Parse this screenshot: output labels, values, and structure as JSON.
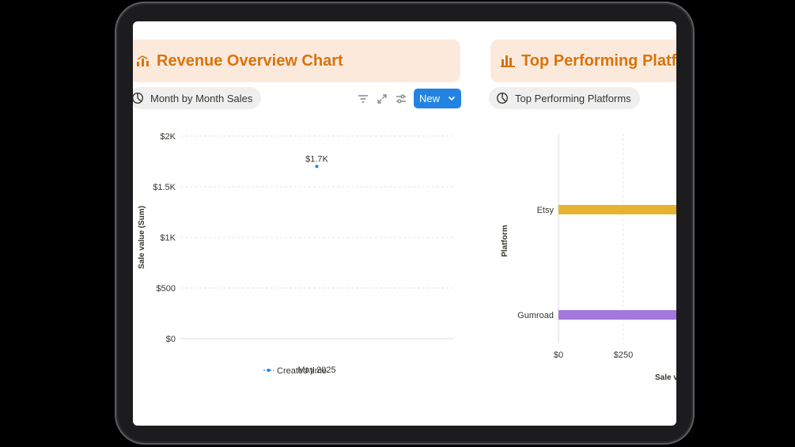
{
  "revenue_panel": {
    "title": "Revenue Overview Chart",
    "view_label": "Month by Month Sales",
    "new_button_label": "New"
  },
  "platforms_panel": {
    "title": "Top Performing Platfo",
    "view_label": "Top Performing Platforms"
  },
  "colors": {
    "accent_orange": "#d9730d",
    "header_bg": "#fbeadc",
    "primary_blue": "#2383e2",
    "etsy_bar": "#e6b330",
    "gumroad_bar": "#a477dc"
  },
  "chart_data": [
    {
      "type": "line",
      "x": [
        "May 2025"
      ],
      "series": [
        {
          "name": "Created time",
          "values": [
            1700
          ]
        }
      ],
      "data_labels": [
        "$1.7K"
      ],
      "ylabel": "Sale value (Sum)",
      "yticks": [
        "$0",
        "$500",
        "$1K",
        "$1.5K",
        "$2K"
      ],
      "ylim": [
        0,
        2000
      ],
      "grid": true,
      "legend": "bottom"
    },
    {
      "type": "bar",
      "orientation": "horizontal",
      "categories": [
        "Etsy",
        "Gumroad"
      ],
      "ylabel": "Platform",
      "xlabel": "Sale v",
      "xticks": [
        "$0",
        "$250"
      ],
      "grid": true
    }
  ]
}
